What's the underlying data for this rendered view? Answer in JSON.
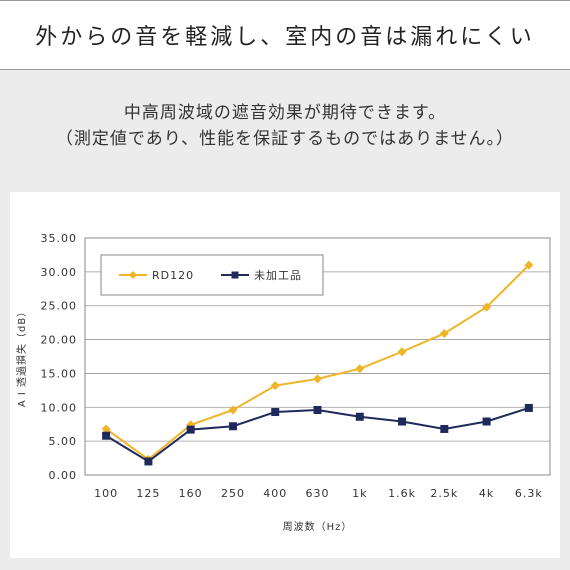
{
  "header": {
    "headline": "外からの音を軽減し、室内の音は漏れにくい",
    "subtitle_line1": "中高周波域の遮音効果が期待できます。",
    "subtitle_line2": "（測定値であり、性能を保証するものではありません。）"
  },
  "colors": {
    "rd120": "#f0b429",
    "untreated": "#1f2a5a",
    "grid": "#999999",
    "frame": "#888888"
  },
  "chart_data": {
    "type": "line",
    "categories": [
      "100",
      "125",
      "160",
      "250",
      "400",
      "630",
      "1k",
      "1.6k",
      "2.5k",
      "4k",
      "6.3k"
    ],
    "y_tick_labels": [
      "0.00",
      "5.00",
      "10.00",
      "15.00",
      "20.00",
      "25.00",
      "30.00",
      "35.00"
    ],
    "ylim": [
      0,
      35
    ],
    "ylabel": "A I 透過損失（dB）",
    "xlabel": "周波数（Hz）",
    "grid": true,
    "legend_position": "top-left",
    "series": [
      {
        "name": "RD120",
        "color": "#f0b429",
        "marker": "diamond",
        "values": [
          6.8,
          2.3,
          7.4,
          9.6,
          13.2,
          14.2,
          15.7,
          18.2,
          20.9,
          24.8,
          31.0
        ]
      },
      {
        "name": "未加工品",
        "color": "#1f2a5a",
        "marker": "square",
        "values": [
          5.8,
          2.0,
          6.7,
          7.2,
          9.3,
          9.6,
          8.6,
          7.9,
          6.8,
          7.9,
          9.9
        ]
      }
    ]
  }
}
